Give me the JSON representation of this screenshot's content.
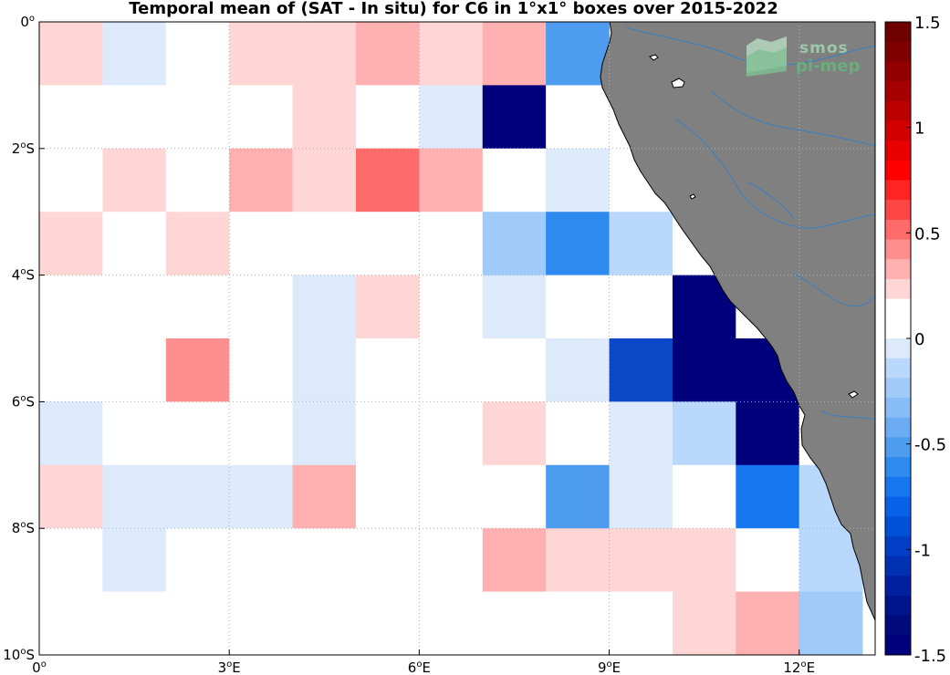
{
  "chart_data": {
    "type": "heatmap",
    "title": "Temporal mean of (SAT - In situ) for C6 in 1°x1° boxes over 2015-2022",
    "x_ticks": [
      {
        "value": 0,
        "deg": "0",
        "sup": "o",
        "hem": ""
      },
      {
        "value": 3,
        "deg": "3",
        "sup": "o",
        "hem": "E"
      },
      {
        "value": 6,
        "deg": "6",
        "sup": "o",
        "hem": "E"
      },
      {
        "value": 9,
        "deg": "9",
        "sup": "o",
        "hem": "E"
      },
      {
        "value": 12,
        "deg": "12",
        "sup": "o",
        "hem": "E"
      }
    ],
    "y_ticks": [
      {
        "value": 0,
        "deg": "0",
        "sup": "o",
        "hem": ""
      },
      {
        "value": -2,
        "deg": "2",
        "sup": "o",
        "hem": "S"
      },
      {
        "value": -4,
        "deg": "4",
        "sup": "o",
        "hem": "S"
      },
      {
        "value": -6,
        "deg": "6",
        "sup": "o",
        "hem": "S"
      },
      {
        "value": -8,
        "deg": "8",
        "sup": "o",
        "hem": "S"
      },
      {
        "value": -10,
        "deg": "10",
        "sup": "o",
        "hem": "S"
      }
    ],
    "xlim": [
      0,
      13.2
    ],
    "ylim": [
      -10,
      0
    ],
    "grid": true,
    "colorbar": {
      "range": [
        -1.5,
        1.5
      ],
      "ticks": [
        {
          "value": 1.5,
          "label": "1.5"
        },
        {
          "value": 1,
          "label": "1"
        },
        {
          "value": 0.5,
          "label": "0.5"
        },
        {
          "value": 0,
          "label": "0"
        },
        {
          "value": -0.5,
          "label": "-0.5"
        },
        {
          "value": -1,
          "label": "-1"
        },
        {
          "value": -1.5,
          "label": "-1.5"
        }
      ],
      "colors_top_to_bottom": [
        "#6e0000",
        "#7f0000",
        "#930000",
        "#a70000",
        "#bc0000",
        "#d20000",
        "#e80000",
        "#ff0000",
        "#ff2424",
        "#ff4646",
        "#ff6a6a",
        "#ff8e8e",
        "#ffb0b0",
        "#ffd6d6",
        "#ffffff",
        "#ffffff",
        "#dceafc",
        "#bad8fb",
        "#a0caf8",
        "#88bcf6",
        "#6cacf3",
        "#4e9cf0",
        "#2f8af0",
        "#1676f0",
        "#0862e8",
        "#0050d8",
        "#003fc6",
        "#0030b4",
        "#0020a0",
        "#00148c",
        "#000a7c",
        "#00007c"
      ]
    },
    "rows_lat_top": [
      0,
      -1,
      -2,
      -3,
      -4,
      -5,
      -6,
      -7,
      -8,
      -9
    ],
    "cols_lon_left": [
      0,
      1,
      2,
      3,
      4,
      5,
      6,
      7,
      8,
      9,
      10,
      11,
      12
    ],
    "cell_values": [
      [
        0.1,
        -0.1,
        0,
        0.1,
        0.1,
        0.2,
        0.1,
        0.2,
        -0.6,
        null,
        null,
        null,
        null
      ],
      [
        0,
        0,
        0,
        0,
        0.1,
        0,
        -0.1,
        -1.5,
        0,
        null,
        null,
        null,
        null
      ],
      [
        0,
        0.1,
        0,
        0.2,
        0.1,
        0.45,
        0.2,
        0,
        -0.1,
        0,
        null,
        null,
        null
      ],
      [
        0.1,
        0,
        0.1,
        0,
        0,
        0,
        0,
        -0.3,
        -0.65,
        -0.25,
        0,
        null,
        null
      ],
      [
        0,
        0,
        0,
        0,
        -0.1,
        0.1,
        0,
        -0.1,
        0,
        0,
        -1.5,
        0,
        null
      ],
      [
        0,
        0,
        0.35,
        0,
        -0.1,
        0,
        0,
        0,
        -0.1,
        -1.2,
        -1.5,
        -1.5,
        null
      ],
      [
        -0.1,
        0,
        0,
        0,
        -0.1,
        0,
        0,
        0.1,
        0,
        -0.1,
        -0.25,
        -1.5,
        0
      ],
      [
        0.1,
        -0.1,
        -0.1,
        -0.1,
        0.2,
        0,
        0,
        0,
        -0.5,
        -0.1,
        0,
        -0.8,
        -0.2
      ],
      [
        0,
        -0.1,
        0,
        0,
        0,
        0,
        0,
        0.2,
        0.1,
        0.1,
        0.1,
        0,
        -0.2
      ],
      [
        0,
        0,
        0,
        0,
        0,
        0,
        0,
        0,
        0,
        0,
        0.1,
        0.25,
        -0.35
      ]
    ],
    "cell_colors": [
      [
        "#ffd6d6",
        "#dceafc",
        "#ffffff",
        "#ffd6d6",
        "#ffd6d6",
        "#ffb0b0",
        "#ffd6d6",
        "#ffb0b0",
        "#4e9cf0",
        null,
        null,
        null,
        null
      ],
      [
        "#ffffff",
        "#ffffff",
        "#ffffff",
        "#ffffff",
        "#ffd6d6",
        "#ffffff",
        "#dceafc",
        "#00007c",
        "#ffffff",
        null,
        null,
        null,
        null
      ],
      [
        "#ffffff",
        "#ffd6d6",
        "#ffffff",
        "#ffb0b0",
        "#ffd6d6",
        "#ff6a6a",
        "#ffb0b0",
        "#ffffff",
        "#dceafc",
        "#ffffff",
        null,
        null,
        null
      ],
      [
        "#ffd6d6",
        "#ffffff",
        "#ffd6d6",
        "#ffffff",
        "#ffffff",
        "#ffffff",
        "#ffffff",
        "#a0caf8",
        "#2f8af0",
        "#bad8fb",
        "#ffffff",
        null,
        null
      ],
      [
        "#ffffff",
        "#ffffff",
        "#ffffff",
        "#ffffff",
        "#dceafc",
        "#ffd6d6",
        "#ffffff",
        "#dceafc",
        "#ffffff",
        "#ffffff",
        "#00007c",
        "#ffffff",
        null
      ],
      [
        "#ffffff",
        "#ffffff",
        "#ff8e8e",
        "#ffffff",
        "#dceafc",
        "#ffffff",
        "#ffffff",
        "#ffffff",
        "#dceafc",
        "#0a48c8",
        "#00007c",
        "#00007c",
        null
      ],
      [
        "#dceafc",
        "#ffffff",
        "#ffffff",
        "#ffffff",
        "#dceafc",
        "#ffffff",
        "#ffffff",
        "#ffd6d6",
        "#ffffff",
        "#dceafc",
        "#bad8fb",
        "#00007c",
        "#ffffff"
      ],
      [
        "#ffd6d6",
        "#dceafc",
        "#dceafc",
        "#dceafc",
        "#ffb0b0",
        "#ffffff",
        "#ffffff",
        "#ffffff",
        "#4e9cf0",
        "#dceafc",
        "#ffffff",
        "#1676f0",
        "#bad8fb"
      ],
      [
        "#ffffff",
        "#dceafc",
        "#ffffff",
        "#ffffff",
        "#ffffff",
        "#ffffff",
        "#ffffff",
        "#ffb0b0",
        "#ffd6d6",
        "#ffd6d6",
        "#ffd6d6",
        "#ffffff",
        "#bad8fb"
      ],
      [
        "#ffffff",
        "#ffffff",
        "#ffffff",
        "#ffffff",
        "#ffffff",
        "#ffffff",
        "#ffffff",
        "#ffffff",
        "#ffffff",
        "#ffffff",
        "#ffd6d6",
        "#ffb0b0",
        "#a0caf8"
      ]
    ],
    "land_color": "#808080",
    "river_color": "#3a7fbf",
    "grid_color": "#b0b0b0"
  },
  "logo": {
    "line1": "smos",
    "line2": "pi-mep"
  }
}
